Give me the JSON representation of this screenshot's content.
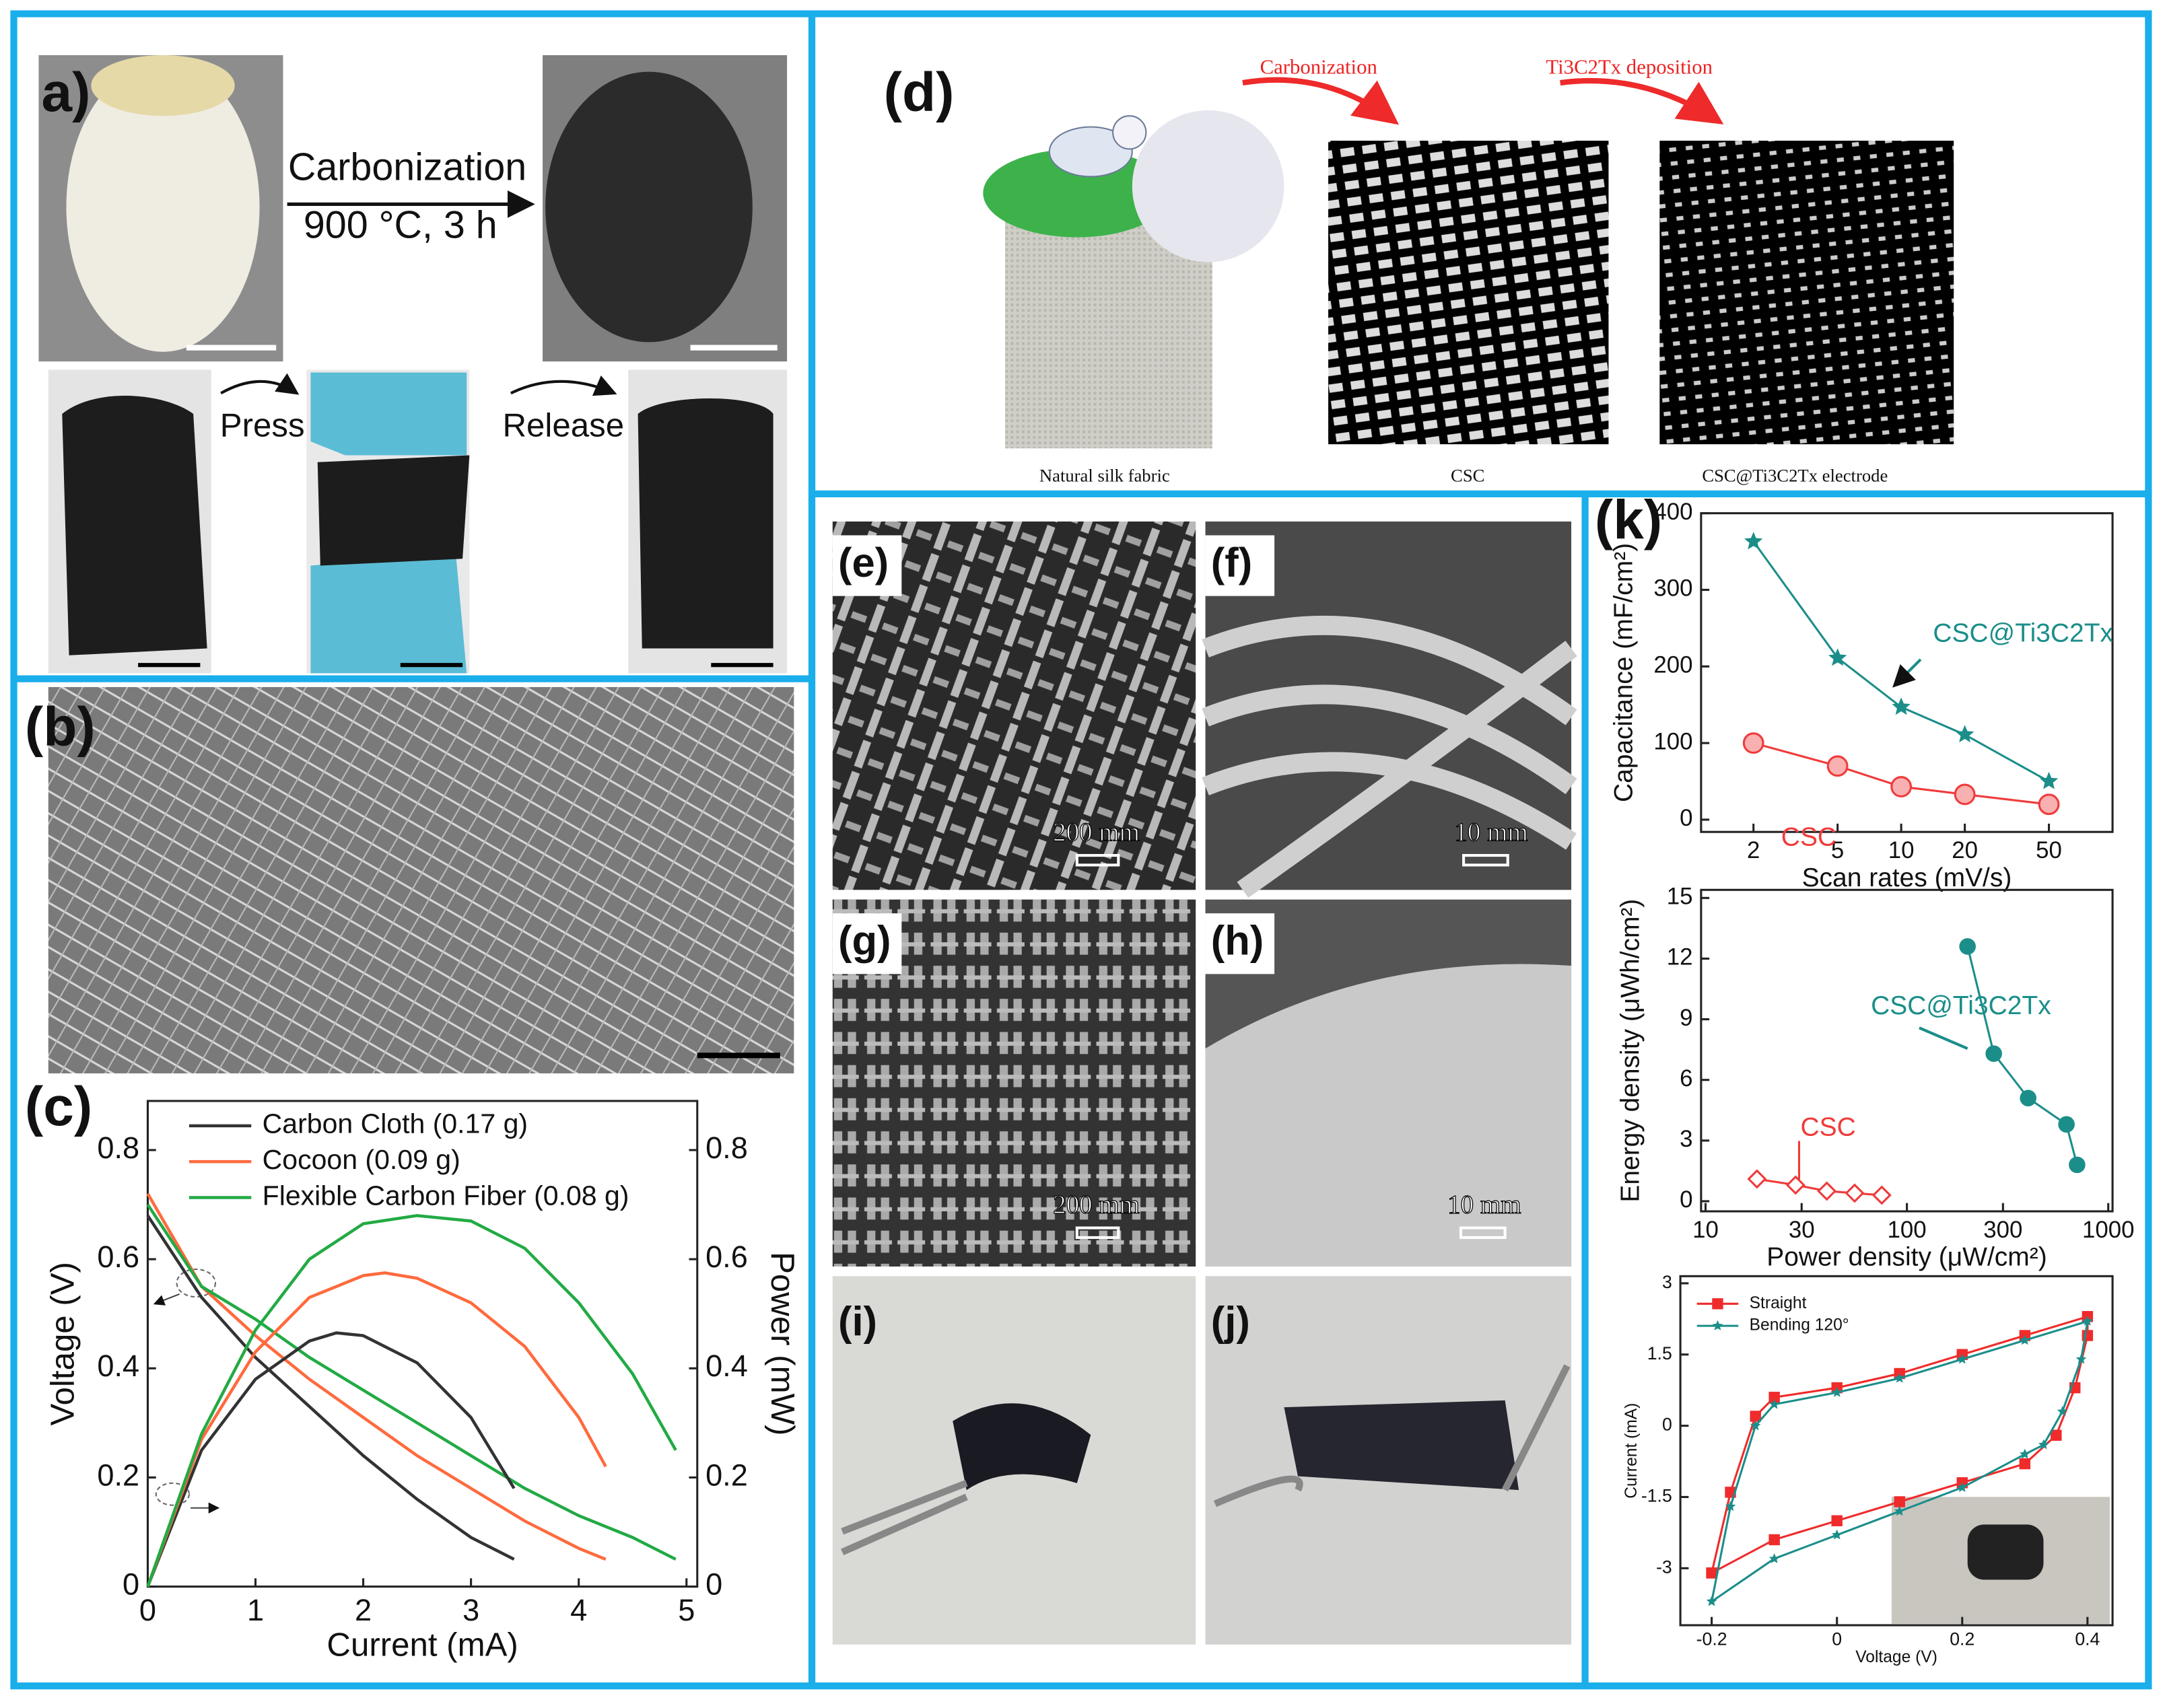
{
  "panels": {
    "a": {
      "label": "a)",
      "arrow_top": "Carbonization",
      "arrow_bottom": "900 °C, 3 h",
      "press": "Press",
      "release": "Release"
    },
    "b": {
      "label": "(b)"
    },
    "c": {
      "label": "(c)"
    },
    "d": {
      "label": "(d)",
      "step_1": "Carbonization",
      "step_2": "Ti3C2Tx deposition",
      "captions": [
        "Natural silk fabric",
        "CSC",
        "CSC@Ti3C2Tx electrode"
      ]
    },
    "e": {
      "label": "(e)",
      "scale": "200 mm"
    },
    "f": {
      "label": "(f)",
      "scale": "10 mm"
    },
    "g": {
      "label": "(g)",
      "scale": "200 mm"
    },
    "h": {
      "label": "(h)",
      "scale": "10 mm"
    },
    "i": {
      "label": "(i)"
    },
    "j": {
      "label": "(j)"
    },
    "k": {
      "label": "(k)"
    }
  },
  "chart_data": [
    {
      "type": "line",
      "x_label": "Current (mA)",
      "y_label": "Voltage (V)",
      "y2_label": "Power (mW)",
      "xlim": [
        0,
        5.1
      ],
      "ylim": [
        0,
        0.89
      ],
      "y2lim": [
        0,
        0.89
      ],
      "xticks": [
        0,
        1,
        2,
        3,
        4,
        5
      ],
      "yticks": [
        0,
        0.2,
        0.4,
        0.6,
        0.8
      ],
      "y2ticks": [
        0,
        0.2,
        0.4,
        0.6,
        0.8
      ],
      "legend": "upper-left",
      "series": [
        {
          "name": "Carbon Cloth (0.17 g)",
          "color": "#333333",
          "x": [
            0,
            0.5,
            1,
            1.5,
            2,
            2.5,
            3,
            3.4
          ],
          "values": [
            0.68,
            0.53,
            0.42,
            0.33,
            0.24,
            0.16,
            0.09,
            0.05
          ]
        },
        {
          "name": "Cocoon (0.09 g)",
          "color": "#ff6a3d",
          "x": [
            0,
            0.5,
            1,
            1.5,
            2,
            2.5,
            3,
            3.5,
            4,
            4.25
          ],
          "values": [
            0.72,
            0.55,
            0.46,
            0.38,
            0.31,
            0.24,
            0.18,
            0.12,
            0.07,
            0.05
          ]
        },
        {
          "name": "Flexible Carbon Fiber (0.08 g)",
          "color": "#22aa44",
          "x": [
            0,
            0.5,
            1,
            1.5,
            2,
            2.5,
            3,
            3.5,
            4,
            4.5,
            4.9
          ],
          "values": [
            0.7,
            0.55,
            0.49,
            0.42,
            0.36,
            0.3,
            0.24,
            0.18,
            0.13,
            0.09,
            0.05
          ]
        },
        {
          "color": "#333333",
          "axis": "y2",
          "x": [
            0,
            0.5,
            1,
            1.5,
            1.75,
            2,
            2.5,
            3,
            3.4
          ],
          "values": [
            0,
            0.25,
            0.38,
            0.45,
            0.465,
            0.46,
            0.41,
            0.31,
            0.18
          ]
        },
        {
          "color": "#ff6a3d",
          "axis": "y2",
          "x": [
            0,
            0.5,
            1,
            1.5,
            2,
            2.2,
            2.5,
            3,
            3.5,
            4,
            4.25
          ],
          "values": [
            0,
            0.27,
            0.43,
            0.53,
            0.57,
            0.575,
            0.565,
            0.52,
            0.44,
            0.31,
            0.22
          ]
        },
        {
          "color": "#22aa44",
          "axis": "y2",
          "x": [
            0,
            0.5,
            1,
            1.5,
            2,
            2.5,
            3,
            3.5,
            4,
            4.5,
            4.9
          ],
          "values": [
            0,
            0.28,
            0.47,
            0.6,
            0.665,
            0.68,
            0.67,
            0.62,
            0.52,
            0.39,
            0.25
          ]
        }
      ]
    },
    {
      "type": "line",
      "x_label": "Scan rates (mV/s)",
      "y_label": "Capacitance (mF/cm²)",
      "xlog": true,
      "xlim": [
        1.13,
        100
      ],
      "ylim": [
        -16,
        400
      ],
      "xticks": [
        2,
        5,
        10,
        20,
        50
      ],
      "yticks": [
        0,
        100,
        200,
        300,
        400
      ],
      "x": [
        2,
        5,
        10,
        20,
        50
      ],
      "series": [
        {
          "name": "CSC@Ti3C2Tx",
          "color": "#1b8e8a",
          "marker": "star",
          "values": [
            363,
            211,
            147,
            111,
            50
          ]
        },
        {
          "name": "CSC",
          "color": "#ef3b3b",
          "marker": "circle",
          "values": [
            100,
            70,
            43,
            33,
            20
          ]
        }
      ]
    },
    {
      "type": "line",
      "x_label": "Power density (μW/cm²)",
      "y_label": "Energy density (μWh/cm²)",
      "xlog": true,
      "xlim": [
        9.5,
        1050
      ],
      "ylim": [
        -0.5,
        15.4
      ],
      "xticks": [
        10,
        30,
        100,
        300,
        1000
      ],
      "yticks": [
        0,
        3,
        6,
        9,
        12,
        15
      ],
      "series": [
        {
          "name": "CSC@Ti3C2Tx",
          "color": "#1b8e8a",
          "marker": "dot",
          "x": [
            200,
            270,
            400,
            620,
            700
          ],
          "values": [
            12.6,
            7.3,
            5.1,
            3.8,
            1.8
          ]
        },
        {
          "name": "CSC",
          "color": "#ef3b3b",
          "marker": "diamond",
          "x": [
            18,
            28,
            40,
            55,
            75
          ],
          "values": [
            1.1,
            0.8,
            0.5,
            0.4,
            0.3
          ]
        }
      ]
    },
    {
      "type": "line",
      "x_label": "Voltage (V)",
      "y_label": "Current (mA)",
      "xlim": [
        -0.25,
        0.44
      ],
      "ylim": [
        -4.2,
        3.15
      ],
      "xticks": [
        -0.2,
        0,
        0.2,
        0.4
      ],
      "yticks": [
        -3,
        -1.5,
        0,
        1.5,
        3
      ],
      "legend": "upper-left",
      "series": [
        {
          "name": "Straight",
          "color": "#ef2b2b",
          "marker": "square",
          "x": [
            -0.2,
            -0.17,
            -0.13,
            -0.1,
            0,
            0.1,
            0.2,
            0.3,
            0.4,
            0.4,
            0.38,
            0.35,
            0.3,
            0.2,
            0.1,
            0,
            -0.1,
            -0.2
          ],
          "values": [
            -3.1,
            -1.4,
            0.2,
            0.6,
            0.8,
            1.1,
            1.5,
            1.9,
            2.3,
            1.9,
            0.8,
            -0.2,
            -0.8,
            -1.2,
            -1.6,
            -2.0,
            -2.4,
            -3.1
          ]
        },
        {
          "name": "Bending 120°",
          "color": "#1b8e8a",
          "marker": "star",
          "x": [
            -0.2,
            -0.17,
            -0.13,
            -0.1,
            0,
            0.1,
            0.2,
            0.3,
            0.4,
            0.39,
            0.36,
            0.33,
            0.3,
            0.2,
            0.1,
            0,
            -0.1,
            -0.2
          ],
          "values": [
            -3.7,
            -1.7,
            0,
            0.45,
            0.7,
            1.0,
            1.4,
            1.8,
            2.2,
            1.4,
            0.3,
            -0.4,
            -0.6,
            -1.3,
            -1.8,
            -2.3,
            -2.8,
            -3.7
          ]
        }
      ]
    }
  ]
}
